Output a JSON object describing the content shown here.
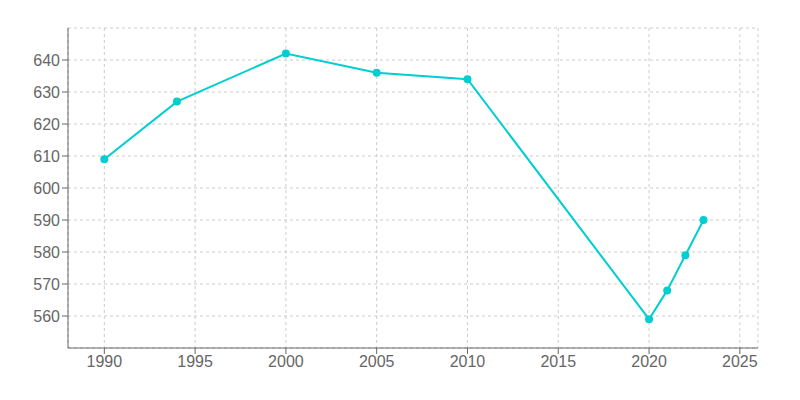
{
  "chart_data": {
    "type": "line",
    "x": [
      1990,
      1994,
      2000,
      2005,
      2010,
      2020,
      2021,
      2022,
      2023
    ],
    "values": [
      609,
      627,
      642,
      636,
      634,
      559,
      568,
      579,
      590
    ],
    "color": "#00CED1",
    "marker": "circle",
    "xlim": [
      1988,
      2026
    ],
    "ylim": [
      550,
      650
    ],
    "xticks": [
      1990,
      1995,
      2000,
      2005,
      2010,
      2015,
      2020,
      2025
    ],
    "yticks": [
      560,
      570,
      580,
      590,
      600,
      610,
      620,
      630,
      640
    ],
    "grid": true
  }
}
